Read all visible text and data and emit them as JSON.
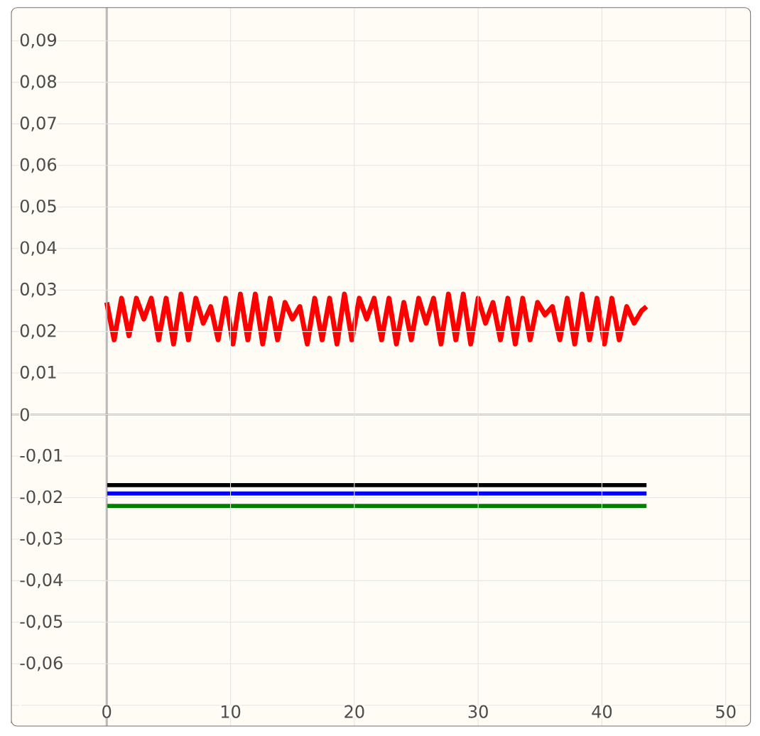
{
  "chart_data": {
    "type": "line",
    "xlim": [
      -7.7,
      52
    ],
    "ylim": [
      -0.075,
      0.098
    ],
    "xticks": [
      0,
      10,
      20,
      30,
      40,
      50
    ],
    "yticks": [
      {
        "value": -0.07,
        "label": null
      },
      {
        "value": -0.06,
        "label": "-0,06"
      },
      {
        "value": -0.05,
        "label": "-0,05"
      },
      {
        "value": -0.04,
        "label": "-0,04"
      },
      {
        "value": -0.03,
        "label": "-0,03"
      },
      {
        "value": -0.02,
        "label": "-0,02"
      },
      {
        "value": -0.01,
        "label": "-0,01"
      },
      {
        "value": 0,
        "label": "0"
      },
      {
        "value": 0.01,
        "label": "0,01"
      },
      {
        "value": 0.02,
        "label": "0,02"
      },
      {
        "value": 0.03,
        "label": "0,03"
      },
      {
        "value": 0.04,
        "label": "0,04"
      },
      {
        "value": 0.05,
        "label": "0,05"
      },
      {
        "value": 0.06,
        "label": "0,06"
      },
      {
        "value": 0.07,
        "label": "0,07"
      },
      {
        "value": 0.08,
        "label": "0,08"
      },
      {
        "value": 0.09,
        "label": "0,09"
      }
    ],
    "grid": true,
    "marker": "none",
    "line_style": "solid",
    "ref_lines": [
      {
        "axis": "x",
        "value": 0,
        "color": "#8c8c8c"
      },
      {
        "axis": "y",
        "value": 0,
        "color": "#4d4d4d"
      }
    ],
    "series": [
      {
        "color": "#ff0000",
        "x": [
          0,
          0.6,
          1.2,
          1.8,
          2.4,
          3.0,
          3.6,
          4.2,
          4.8,
          5.4,
          6.0,
          6.6,
          7.2,
          7.8,
          8.4,
          9.0,
          9.6,
          10.2,
          10.8,
          11.4,
          12.0,
          12.6,
          13.2,
          13.8,
          14.4,
          15.0,
          15.6,
          16.2,
          16.8,
          17.4,
          18.0,
          18.6,
          19.2,
          19.8,
          20.4,
          21.0,
          21.6,
          22.2,
          22.8,
          23.4,
          24.0,
          24.6,
          25.2,
          25.8,
          26.4,
          27.0,
          27.6,
          28.2,
          28.8,
          29.4,
          30.0,
          30.6,
          31.2,
          31.8,
          32.4,
          33.0,
          33.6,
          34.2,
          34.8,
          35.4,
          36.0,
          36.6,
          37.2,
          37.8,
          38.4,
          39.0,
          39.6,
          40.2,
          40.8,
          41.4,
          42.0,
          42.6,
          43.2,
          43.6
        ],
        "values": [
          0.027,
          0.018,
          0.028,
          0.019,
          0.028,
          0.023,
          0.028,
          0.018,
          0.028,
          0.017,
          0.029,
          0.018,
          0.028,
          0.022,
          0.026,
          0.018,
          0.028,
          0.017,
          0.029,
          0.018,
          0.029,
          0.017,
          0.028,
          0.018,
          0.027,
          0.023,
          0.026,
          0.017,
          0.028,
          0.018,
          0.028,
          0.017,
          0.029,
          0.018,
          0.028,
          0.023,
          0.028,
          0.018,
          0.028,
          0.017,
          0.027,
          0.018,
          0.028,
          0.022,
          0.028,
          0.017,
          0.029,
          0.018,
          0.029,
          0.017,
          0.028,
          0.022,
          0.027,
          0.018,
          0.028,
          0.017,
          0.028,
          0.018,
          0.027,
          0.024,
          0.026,
          0.018,
          0.028,
          0.017,
          0.029,
          0.018,
          0.028,
          0.017,
          0.028,
          0.018,
          0.026,
          0.022,
          0.025,
          0.026
        ]
      },
      {
        "color": "#000000",
        "x": [
          0,
          43.6
        ],
        "values": [
          -0.017,
          -0.017
        ]
      },
      {
        "color": "#0000ff",
        "x": [
          0,
          43.6
        ],
        "values": [
          -0.019,
          -0.019
        ]
      },
      {
        "color": "#008000",
        "x": [
          0,
          43.6
        ],
        "values": [
          -0.022,
          -0.022
        ]
      }
    ]
  }
}
